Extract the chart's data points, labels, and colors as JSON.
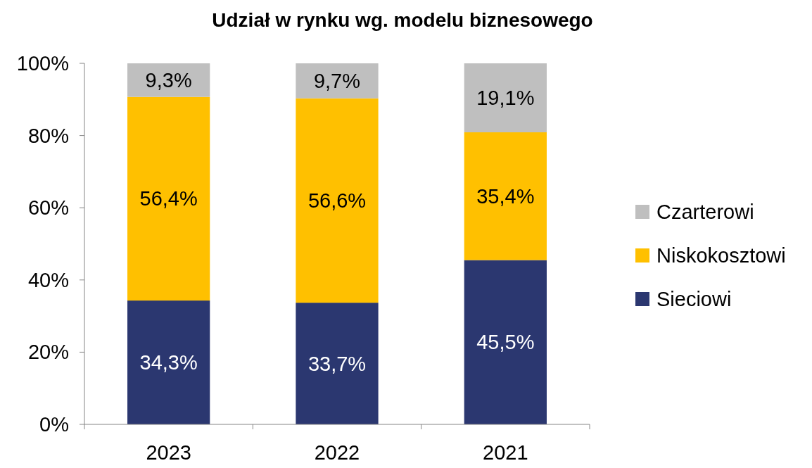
{
  "chart_data": {
    "type": "bar",
    "title": "Udział w rynku wg. modelu biznesowego",
    "stacked": true,
    "categories": [
      "2023",
      "2022",
      "2021"
    ],
    "series": [
      {
        "name": "Sieciowi",
        "color": "#2b3770",
        "values": [
          34.3,
          33.7,
          45.5
        ],
        "value_labels": [
          "34,3%",
          "33,7%",
          "45,5%"
        ]
      },
      {
        "name": "Niskokosztowi",
        "color": "#ffc000",
        "values": [
          56.4,
          56.6,
          35.4
        ],
        "value_labels": [
          "56,4%",
          "56,6%",
          "35,4%"
        ]
      },
      {
        "name": "Czarterowi",
        "color": "#bfbfbf",
        "values": [
          9.3,
          9.7,
          19.1
        ],
        "value_labels": [
          "9,3%",
          "9,7%",
          "19,1%"
        ]
      }
    ],
    "ylim": [
      0,
      100
    ],
    "yticks": [
      {
        "value": 0,
        "label": "0%"
      },
      {
        "value": 20,
        "label": "20%"
      },
      {
        "value": 40,
        "label": "40%"
      },
      {
        "value": 60,
        "label": "60%"
      },
      {
        "value": 80,
        "label": "80%"
      },
      {
        "value": 100,
        "label": "100%"
      }
    ],
    "grid": false,
    "legend": "right"
  }
}
